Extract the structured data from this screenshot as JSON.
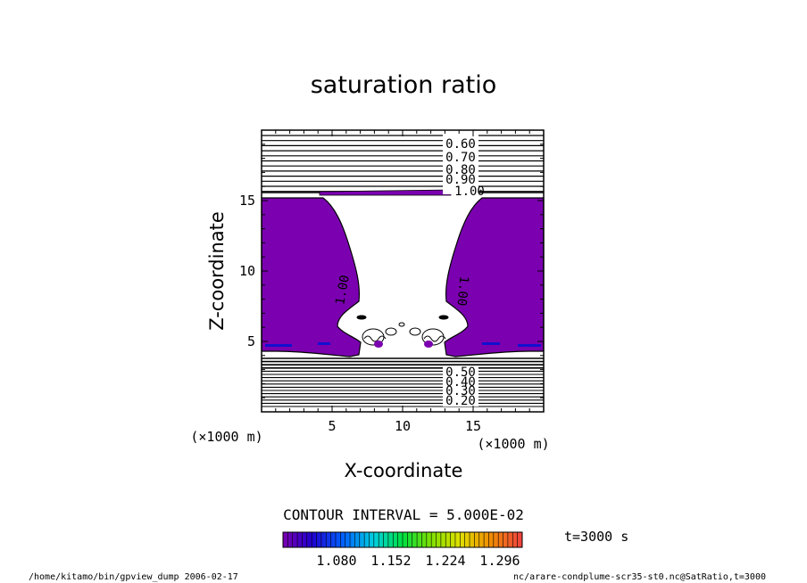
{
  "chart_data": {
    "type": "contour",
    "title": "saturation ratio",
    "xlabel": "X-coordinate",
    "ylabel": "Z-coordinate",
    "x_unit": "(×1000 m)",
    "z_unit": "(×1000 m)",
    "xlim": [
      0,
      20
    ],
    "ylim": [
      0,
      20
    ],
    "x_ticks": [
      5,
      10,
      15
    ],
    "y_ticks": [
      5,
      10,
      15
    ],
    "contour_interval": "CONTOUR INTERVAL = 5.000E-02",
    "upper_contour_labels": [
      "0.60",
      "0.70",
      "0.80",
      "0.90",
      "1.00"
    ],
    "lower_contour_labels": [
      "0.50",
      "0.40",
      "0.30",
      "0.20"
    ],
    "plume_edge_labels": [
      "1.00",
      "1.00"
    ],
    "colorbar_ticks": [
      "1.080",
      "1.152",
      "1.224",
      "1.296"
    ],
    "colorbar_range": [
      1.0,
      1.35
    ],
    "time_label": "t=3000 s",
    "supersaturated_fill": "#7b00b0",
    "footer_left": "/home/kitamo/bin/gpview_dump  2006-02-17",
    "footer_right": "nc/arare-condplume-scr35-st0.nc@SatRatio,t=3000"
  }
}
